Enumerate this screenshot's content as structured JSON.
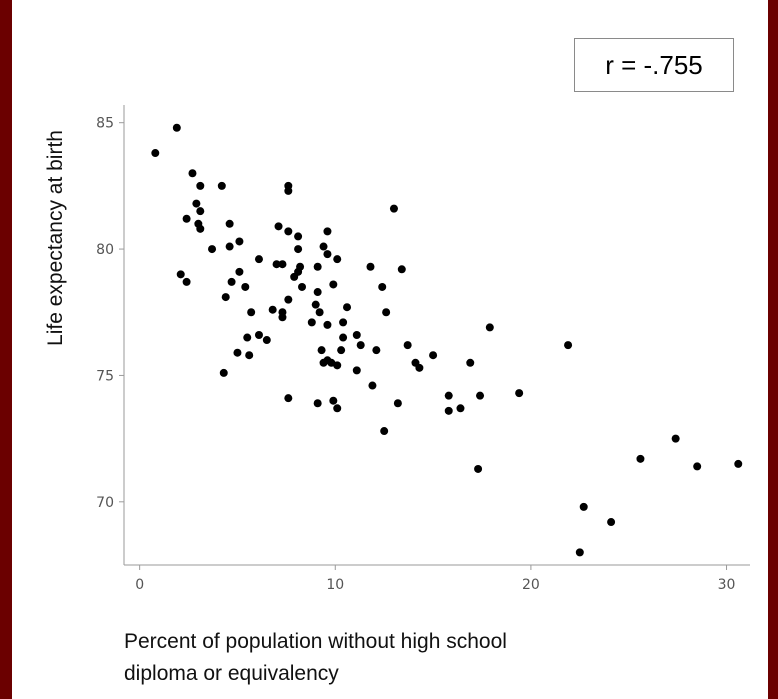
{
  "annotation": {
    "r_label": "r = -.755"
  },
  "chart_data": {
    "type": "scatter",
    "xlabel_lines": [
      "Percent of population without high school",
      "diploma or equivalency"
    ],
    "ylabel": "Life expectancy at birth",
    "xlim": [
      -0.8,
      31.2
    ],
    "ylim": [
      67.5,
      85.7
    ],
    "x_ticks": [
      0,
      10,
      20,
      30
    ],
    "y_ticks": [
      70,
      75,
      80,
      85
    ],
    "grid": false,
    "point_color": "#000000",
    "points": [
      [
        0.8,
        83.8
      ],
      [
        1.9,
        84.8
      ],
      [
        2.7,
        83.0
      ],
      [
        3.1,
        82.5
      ],
      [
        4.2,
        82.5
      ],
      [
        2.9,
        81.8
      ],
      [
        3.1,
        81.5
      ],
      [
        2.4,
        81.2
      ],
      [
        3.0,
        81.0
      ],
      [
        3.1,
        80.8
      ],
      [
        2.1,
        79.0
      ],
      [
        2.4,
        78.7
      ],
      [
        3.7,
        80.0
      ],
      [
        4.6,
        81.0
      ],
      [
        4.6,
        80.1
      ],
      [
        5.1,
        80.3
      ],
      [
        4.7,
        78.7
      ],
      [
        5.1,
        79.1
      ],
      [
        5.4,
        78.5
      ],
      [
        4.4,
        78.1
      ],
      [
        6.1,
        79.6
      ],
      [
        5.7,
        77.5
      ],
      [
        5.5,
        76.5
      ],
      [
        6.1,
        76.6
      ],
      [
        6.5,
        76.4
      ],
      [
        5.0,
        75.9
      ],
      [
        5.6,
        75.8
      ],
      [
        4.3,
        75.1
      ],
      [
        7.6,
        82.5
      ],
      [
        7.6,
        82.3
      ],
      [
        7.1,
        80.9
      ],
      [
        7.6,
        80.7
      ],
      [
        8.1,
        80.5
      ],
      [
        8.1,
        80.0
      ],
      [
        7.0,
        79.4
      ],
      [
        7.3,
        79.4
      ],
      [
        8.1,
        79.1
      ],
      [
        7.9,
        78.9
      ],
      [
        8.2,
        79.3
      ],
      [
        8.3,
        78.5
      ],
      [
        7.6,
        78.0
      ],
      [
        6.8,
        77.6
      ],
      [
        7.3,
        77.5
      ],
      [
        7.3,
        77.3
      ],
      [
        8.8,
        77.1
      ],
      [
        7.6,
        74.1
      ],
      [
        9.6,
        80.7
      ],
      [
        9.4,
        80.1
      ],
      [
        9.6,
        79.8
      ],
      [
        10.1,
        79.6
      ],
      [
        9.1,
        79.3
      ],
      [
        9.9,
        78.6
      ],
      [
        9.1,
        78.3
      ],
      [
        9.0,
        77.8
      ],
      [
        9.2,
        77.5
      ],
      [
        9.6,
        77.0
      ],
      [
        10.4,
        77.1
      ],
      [
        10.6,
        77.7
      ],
      [
        10.4,
        76.5
      ],
      [
        10.3,
        76.0
      ],
      [
        9.3,
        76.0
      ],
      [
        9.4,
        75.5
      ],
      [
        9.8,
        75.5
      ],
      [
        9.6,
        75.6
      ],
      [
        10.1,
        75.4
      ],
      [
        9.1,
        73.9
      ],
      [
        9.9,
        74.0
      ],
      [
        10.1,
        73.7
      ],
      [
        11.1,
        76.6
      ],
      [
        11.3,
        76.2
      ],
      [
        11.1,
        75.2
      ],
      [
        12.1,
        76.0
      ],
      [
        11.9,
        74.6
      ],
      [
        11.8,
        79.3
      ],
      [
        12.4,
        78.5
      ],
      [
        12.6,
        77.5
      ],
      [
        13.4,
        79.2
      ],
      [
        13.0,
        81.6
      ],
      [
        13.7,
        76.2
      ],
      [
        14.1,
        75.5
      ],
      [
        14.3,
        75.3
      ],
      [
        15.0,
        75.8
      ],
      [
        13.2,
        73.9
      ],
      [
        12.5,
        72.8
      ],
      [
        15.8,
        74.2
      ],
      [
        15.8,
        73.6
      ],
      [
        16.4,
        73.7
      ],
      [
        16.9,
        75.5
      ],
      [
        17.4,
        74.2
      ],
      [
        17.9,
        76.9
      ],
      [
        17.3,
        71.3
      ],
      [
        19.4,
        74.3
      ],
      [
        21.9,
        76.2
      ],
      [
        22.7,
        69.8
      ],
      [
        22.5,
        68.0
      ],
      [
        24.1,
        69.2
      ],
      [
        25.6,
        71.7
      ],
      [
        27.4,
        72.5
      ],
      [
        28.5,
        71.4
      ],
      [
        30.6,
        71.5
      ]
    ]
  }
}
